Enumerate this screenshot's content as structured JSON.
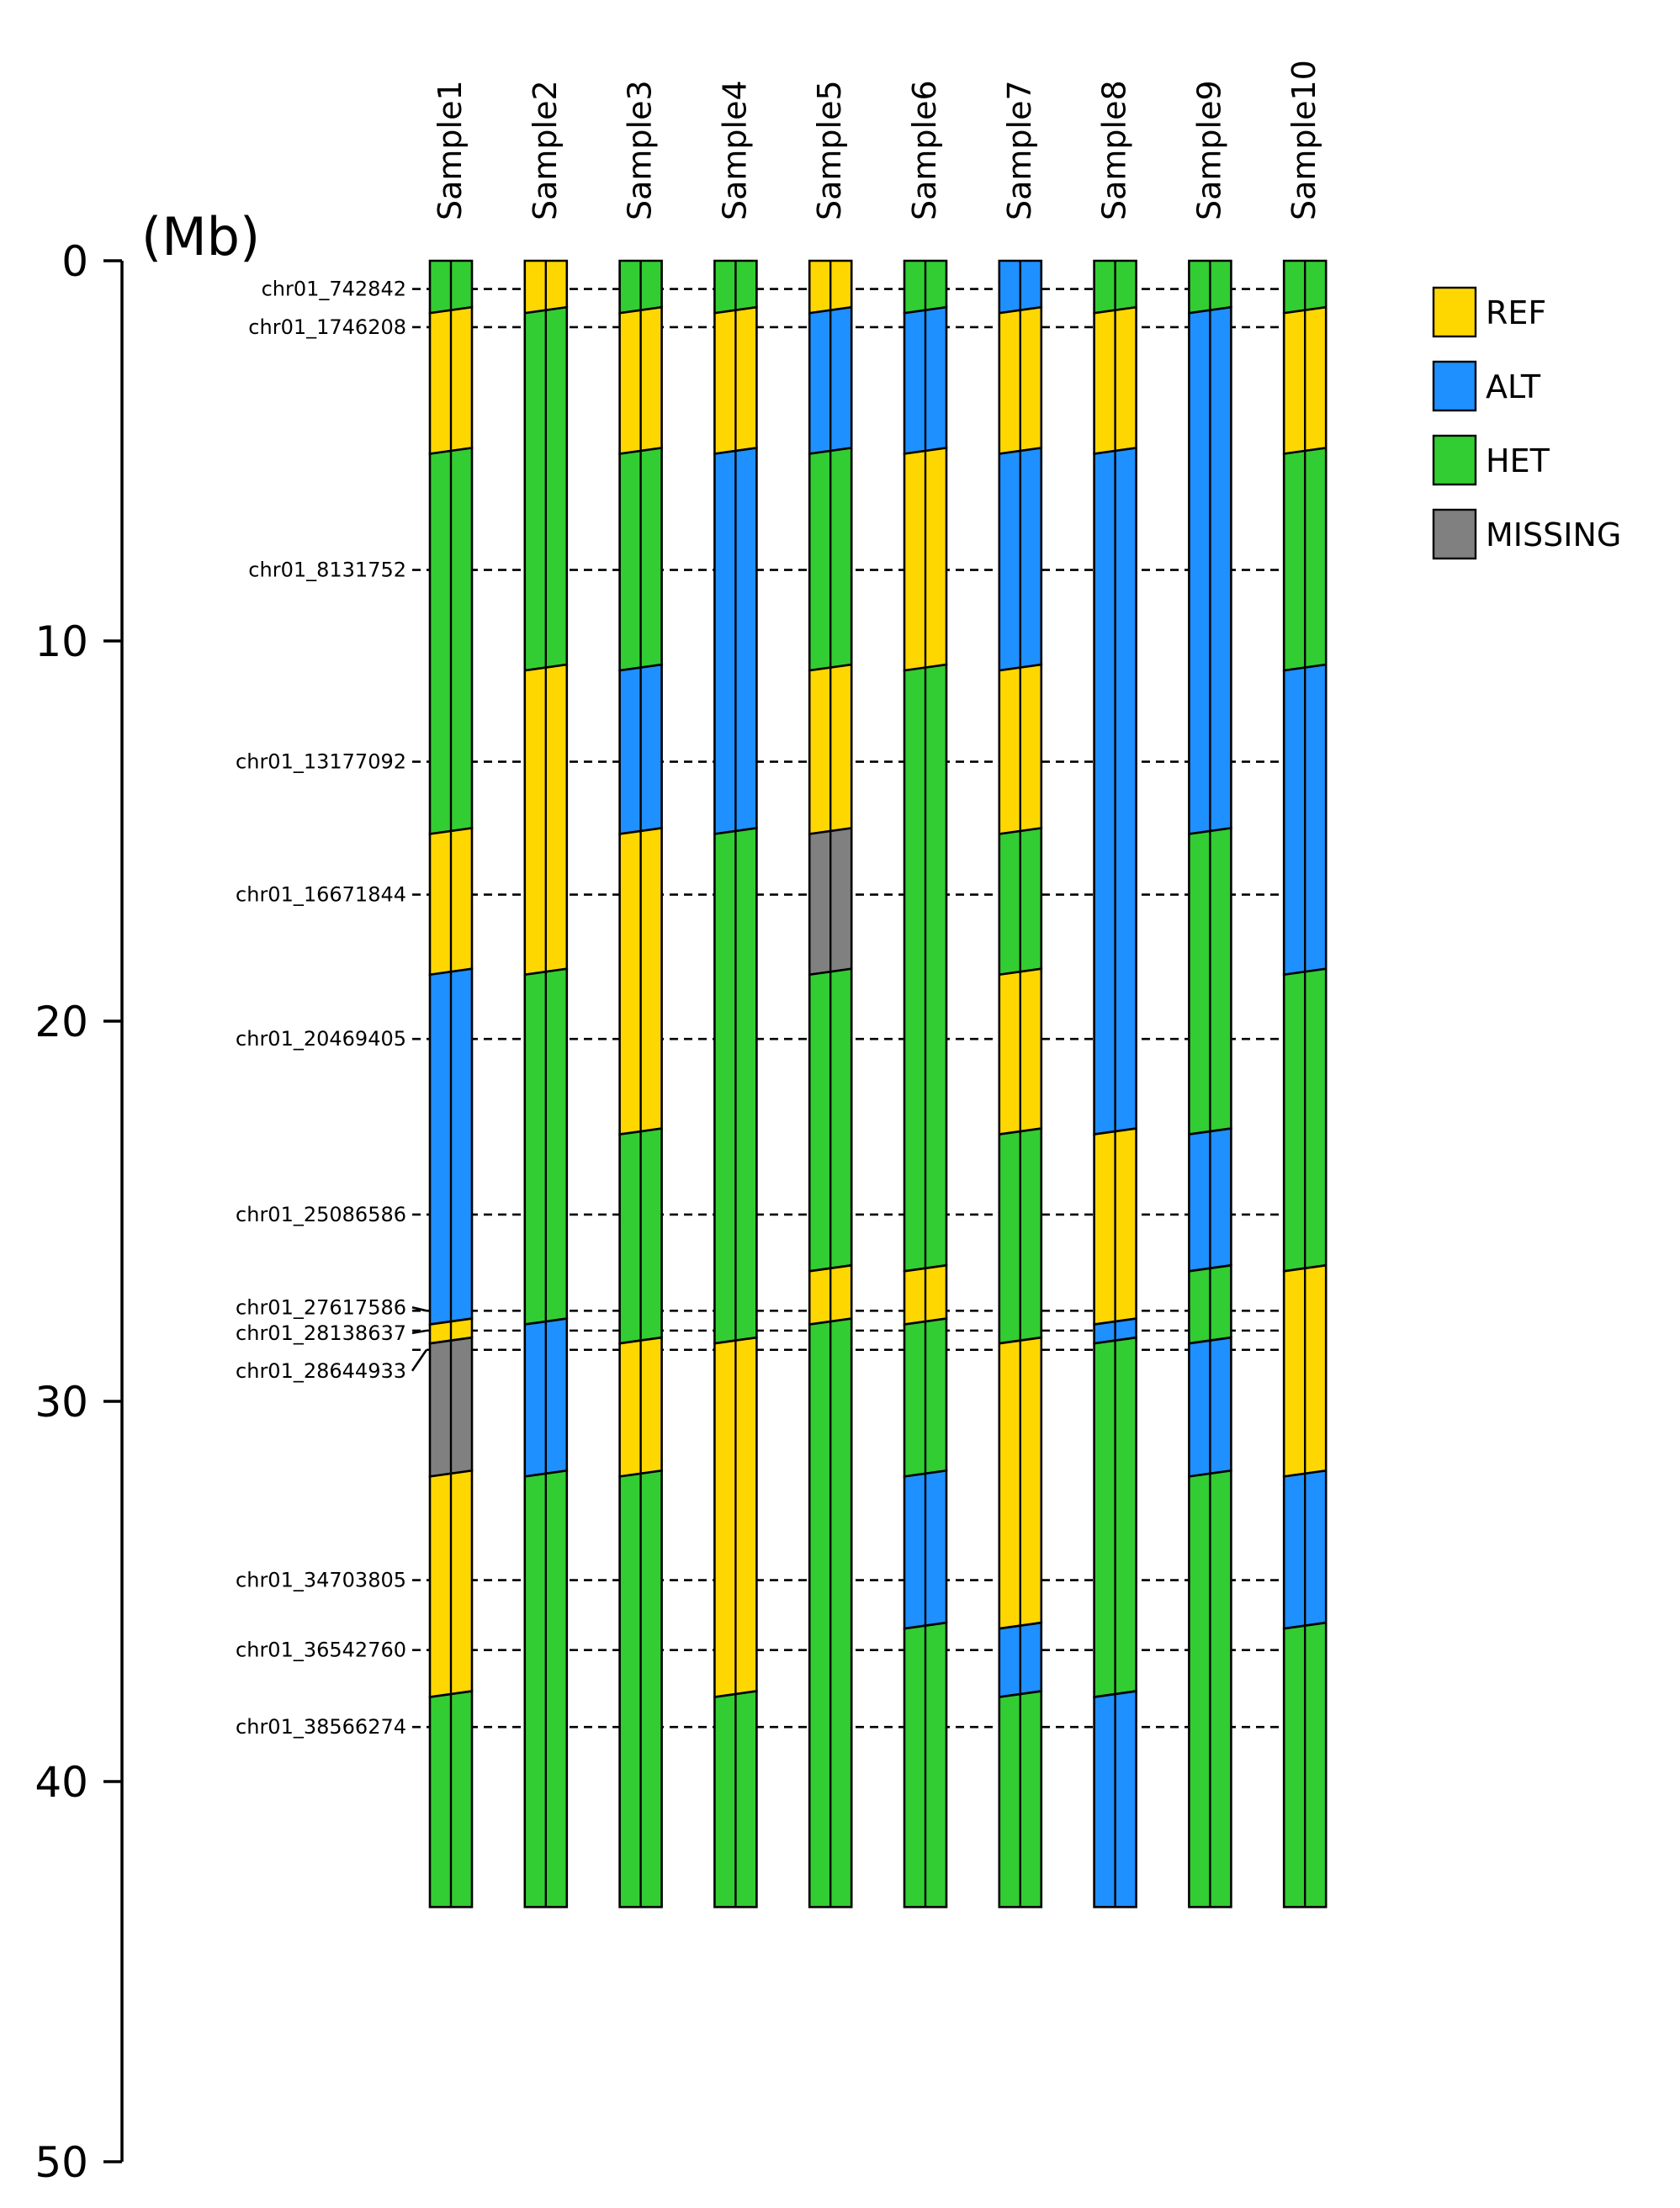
{
  "axis": {
    "unit_label": "(Mb)",
    "range_mb": [
      0,
      50
    ],
    "ticks": [
      0,
      10,
      20,
      30,
      40,
      50
    ],
    "chromosome_length_mb": 43.3
  },
  "legend": {
    "items": [
      {
        "key": "REF",
        "label": "REF",
        "color": "#FFD700"
      },
      {
        "key": "ALT",
        "label": "ALT",
        "color": "#1E90FF"
      },
      {
        "key": "HET",
        "label": "HET",
        "color": "#32CD32"
      },
      {
        "key": "MISSING",
        "label": "MISSING",
        "color": "#808080"
      }
    ]
  },
  "markers": [
    {
      "label": "chr01_742842",
      "mb": 0.742842
    },
    {
      "label": "chr01_1746208",
      "mb": 1.746208
    },
    {
      "label": "chr01_8131752",
      "mb": 8.131752
    },
    {
      "label": "chr01_13177092",
      "mb": 13.177092
    },
    {
      "label": "chr01_16671844",
      "mb": 16.671844
    },
    {
      "label": "chr01_20469405",
      "mb": 20.469405
    },
    {
      "label": "chr01_25086586",
      "mb": 25.086586
    },
    {
      "label": "chr01_27617586",
      "mb": 27.617586
    },
    {
      "label": "chr01_28138637",
      "mb": 28.138637
    },
    {
      "label": "chr01_28644933",
      "mb": 28.644933
    }
  ],
  "markers_lower": [
    {
      "label": "chr01_34703805",
      "mb": 34.703805
    },
    {
      "label": "chr01_36542760",
      "mb": 36.54276
    },
    {
      "label": "chr01_38566274",
      "mb": 38.566274
    }
  ],
  "samples": [
    {
      "name": "Sample1",
      "genotypes": [
        "HET",
        "REF",
        "HET",
        "REF",
        "ALT",
        "REF",
        "MISSING",
        "REF",
        "HET"
      ]
    },
    {
      "name": "Sample2",
      "genotypes": [
        "REF",
        "HET",
        "REF",
        "HET",
        "ALT",
        "HET"
      ]
    },
    {
      "name": "Sample3",
      "genotypes": [
        "HET",
        "REF",
        "HET",
        "ALT",
        "REF",
        "HET",
        "REF",
        "HET"
      ]
    },
    {
      "name": "Sample4",
      "genotypes": [
        "HET",
        "REF",
        "ALT",
        "HET",
        "REF",
        "HET"
      ]
    },
    {
      "name": "Sample5",
      "genotypes": [
        "REF",
        "ALT",
        "HET",
        "REF",
        "MISSING",
        "HET",
        "REF",
        "HET"
      ]
    },
    {
      "name": "Sample6",
      "genotypes": [
        "HET",
        "ALT",
        "REF",
        "HET",
        "REF",
        "HET",
        "ALT",
        "HET"
      ]
    },
    {
      "name": "Sample7",
      "genotypes": [
        "ALT",
        "REF",
        "ALT",
        "REF",
        "HET",
        "REF",
        "HET",
        "REF",
        "ALT",
        "HET"
      ]
    },
    {
      "name": "Sample8",
      "genotypes": [
        "HET",
        "REF",
        "ALT",
        "REF",
        "ALT",
        "HET",
        "ALT"
      ]
    },
    {
      "name": "Sample9",
      "genotypes": [
        "HET",
        "ALT",
        "HET",
        "ALT",
        "HET",
        "ALT",
        "HET"
      ]
    },
    {
      "name": "Sample10",
      "genotypes": [
        "HET",
        "REF",
        "HET",
        "ALT",
        "HET",
        "REF",
        "ALT",
        "HET"
      ]
    }
  ],
  "breakpoints_mb": {
    "Sample1": [
      1.3,
      5.0,
      15.0,
      18.7,
      27.9,
      28.4,
      31.9,
      37.7
    ],
    "Sample2": [
      1.3,
      10.7,
      18.7,
      27.9,
      31.9
    ],
    "Sample3": [
      1.3,
      5.0,
      10.7,
      15.0,
      22.9,
      28.4,
      31.9
    ],
    "Sample4": [
      1.3,
      5.0,
      15.0,
      28.4,
      37.7
    ],
    "Sample5": [
      1.3,
      5.0,
      10.7,
      15.0,
      18.7,
      26.5,
      27.9
    ],
    "Sample6": [
      1.3,
      5.0,
      10.7,
      26.5,
      27.9,
      31.9,
      35.9
    ],
    "Sample7": [
      1.3,
      5.0,
      10.7,
      15.0,
      18.7,
      22.9,
      28.4,
      35.9,
      37.7
    ],
    "Sample8": [
      1.3,
      5.0,
      22.9,
      27.9,
      28.4,
      37.7
    ],
    "Sample9": [
      1.3,
      15.0,
      22.9,
      26.5,
      28.4,
      31.9
    ],
    "Sample10": [
      1.3,
      5.0,
      10.7,
      18.7,
      26.5,
      31.9,
      35.9
    ]
  }
}
